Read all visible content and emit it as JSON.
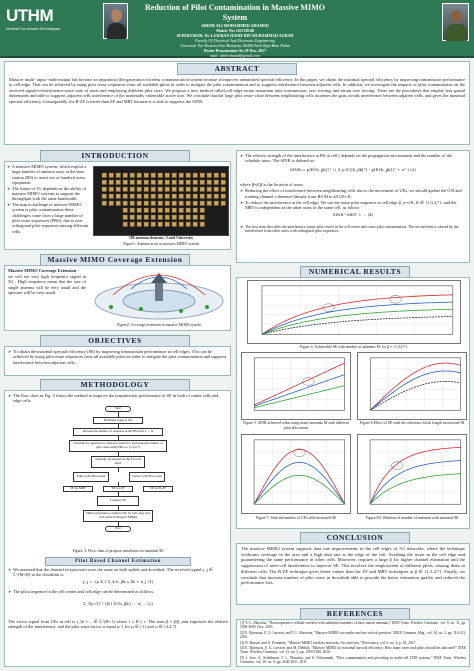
{
  "header": {
    "logo_text": "UTHM",
    "logo_subtext": "Universiti Tun Hussein Onn Malaysia",
    "title": "Reduction of Pilot Contamination in Massive MIMO System",
    "author": "ABEER ALI MOHAMMED AHAMED",
    "matric": "Matric No: GE150140",
    "supervisor": "SUPERVISOR: Dr. LUKMAN HANIF BIN MUHAMMAD AUDAH",
    "faculty": "Faculty Of Electrical And Electronic Engineering",
    "university": "Universiti Tun Hussein Onn Malaysia, 86400 Parit Raja Batu Pahat",
    "presentation": "Poster Presentation On 20 Nov. 2017",
    "email": "mail: abeerahmed@gmail.com"
  },
  "abstract": {
    "heading": "ABSTRACT",
    "text": "Massive multi- input -multi-output has become an important fifth-generation wireless communication system because it improves transmitted spectral efficiency. In this paper, we obtain the maximal spectral efficiency by improving transmission performance in cell-edge. That can be achieved by using pilot reuse sequences from all available pilots in order to mitigate the pilot contamination and to suppress interference between adjacent cells. In addition, we investigate the impacts of pilot contamination on the received signal-to-interference-noise ratio of users and employing different pilot sizes. We propose a new method called cell-edge-aware maximum ratio transmission, zero forcing, and return zero forcing. These are the procedures that employ less spatial dimensions and able to suppress adjacent cells interference of the maximally vulnerable active user. We conclude that the large pilot reuse value between neighbouring cells increases the gain, avoids interference between adjacent cells, and gives the maximal spectral efficiency. Consequently, the R-ZF is better than ZF and MRT because it is able to suppress the SINR."
  },
  "introduction": {
    "heading": "INTRODUCTION",
    "bullets": [
      "A massive MIMO system, which exploit a huge number of antenna array at the base station (BS) to assist ten or hundred users equipment.",
      "The future of 5G depends on the ability of massive MIMO systems to support the throughput with the same bandwidth.",
      "The major challenge in massive MIMO system is pilot contamination these challenges come from a large number of pilot reuse sequences (PRS), due to non-orthogonal pilot sequences among different cells."
    ],
    "figure_caption": "Figure1: Antenna array in massive MIMO system",
    "figure_label_top": "180 antenna elements | Lund University",
    "figure_dim_w": "1.22 cm",
    "figure_dim_h": "61 cm"
  },
  "coverage": {
    "heading": "Massive MIMO Coverage Extension",
    "sub_heading": "Massive MIMO Coverage Extension",
    "text": "we will see very high frequency   signal in 5G , High frequency mean that  the size of single antenna will   be very small and the aperture will be very small.",
    "figure_caption": "Figure2: Coverage extension in massive MIMO system"
  },
  "objectives": {
    "heading": "OBJECTIVES",
    "bullets": [
      "To obtain the maximal spectral efficiency (SE) by improving transmission performance in cell edges. This can be achieved by using pilot reuse sequences from all available pilots in order to mitigate the pilot contamination and suppress interference between adjacent cells."
    ]
  },
  "methodology": {
    "heading": "METHODOLOGY",
    "intro": "The flow chart in Fig. 3 shows the method to improve the transmission performance of SE in both of center cells and edge cells.",
    "flow": [
      "Start",
      "Parameter input to file",
      "Increase the number of antennas in the BS from  1 →  N",
      "Schedule Ue depends on coherence interval τ  and Generate number of pilot reuse using PRS  ω= [1,3,4,7]",
      "Schedule Ue depend on the β for all users",
      "Edge Cells Pilot reuse",
      "Center Cells Pilot reuse",
      "SE for MRT",
      "SE for ZF",
      "SE for R-ZF",
      "Compare SE",
      "High performance, achieved SE by Cell-edge and cell-centre in Massive MIMO",
      "End"
    ],
    "figure_caption": "Figure. 3. Flow chart of propose simulation for maximal SE.",
    "pilot_heading": "Pilot Based Channel Estimation",
    "pilot_bullets": [
      "We assumed that the channel reciprocities were the same on both uplink and downlink. The received signal y_j ∈ ℂ^(M×B) in the downlink is:",
      "The pilot sequence in the cell center and cell edge can be determined as follows:"
    ],
    "eq1": "y_j = √ρ Σ_l Σ_k h_jlk s_lk + n_j      (1)",
    "eq2": "Σ_{k=1}^{K} E{h_jlk} ... ≤ ... (2)",
    "pilot_text": "The vector signal from UEs in cell is s_lk = ... ∈ ℂ^(B×1) where 1 ≤ B ≤ τ. The term  β = β/β_min expresses the relative strength of the interference, and the pilot reuse factor is equal to 1 for ω ∈ {1} and ω ∈ {3,4,7}."
  },
  "right_top": {
    "bullets": [
      "The relative strength of the interference at BS in cell l depends on the propagation environment and the number of the schedule users. The SINR is defined as:",
      "where β̄=β/β̄ is the location of users.",
      "Reducing the effect of interference between neighbouring cells due to the movement of UEs, we should update the CSI and training channel coherence linearly from BS M to all UEs K.",
      "To reduce the interference at the cell edge, We use the reuse pilot sequence at cell edge β_e=c/K, K ∈ {1,3,4,7}, and the MRT is independent in the other users in the same cell, as follow:"
    ],
    "note1": "The first term describes the interference (same pilot reuse) in the cell center and cause pilot contamination. The second term is caused by the interference from other users with orthogonal pilot sequences.",
    "eq_sinr": "SINR = p|E{h_jjk}|² / ( Σ p E{|h_jlk|²} - p|E{h_jjk}|² + σ² )     (3)",
    "eq_mrt": "SINR^MRT = ... (4)"
  },
  "results": {
    "heading": "NUMERICAL RESULTS",
    "fig4_caption": "Figure 4: Achievable SE with number of antennas M, for β = {1,3,4,7}.",
    "fig5_caption": "Figure 5: SINR achieved when using many antennas M with different pilot allocations",
    "fig6_caption": "Figure 6:Effect of SE with the coherence block length on increase M",
    "fig7_caption": "Figure 7: Selected number of UEs with increased SE",
    "fig8_caption": "Figure 8.0: Relation of number of antennas with maximal SE",
    "legend": [
      "MRT",
      "ZF",
      "R-ZF",
      "Cell-edge",
      "Cell-center"
    ],
    "xlabel": "Number of BS Antennas (M)",
    "ylabel": "Spectral Efficiency (bit/s/Hz/cell)"
  },
  "conclusion": {
    "heading": "CONCLUSION",
    "text": "The massive MIMO system supports data rate improvements in the cell edges of 5G networks, where the technique facilitates coverage in the area and a high data rate at the edge of the cell. Avoiding the noise in the cell edge and guaranteeing the same performance in other cells. Moreover, requires a large β for higher channel estimation and the suppression of inter-cell interference to improve SE. This involves the employment of different pilots, reusing them in different cells. The R-ZF technique gives better values than the ZF and MRT techniques at β ∈ {1,3,4,7}. Finally, we conclude that increase number of pilot reuse in downlink able to provide the better estimation quality and reduced the performance loss."
  },
  "references": {
    "heading": "REFERENCES",
    "items": [
      "[1] Y.-L. Marzetta, \"Noncooperative cellular wireless with unlimited numbers of base station antennas,\" IEEE Trans. Wireless Commun., vol. 9, no. 11, pp. 3590-3600, Nov. 2010.",
      "[2] E. Björnson, E. G. Larsson, and T. L. Marzetta, \"Massive MIMO: ten myths and one critical question,\" IEEE Commun. Mag., vol. 54, no. 2, pp. 114-123, 2016.",
      "[3] N. Hassan, and X. Fernando, \"Massive MIMO wireless networks: An overview,\" Electronics, vol. 6, no. 3, p. 63, 2017.",
      "[4] E. Björnson, E. G. Larsson, and M. Debbah, \"Massive MIMO for maximal spectral efficiency: How many users and pilots should be allocated?\" IEEE Trans. Wireless Commun., vol. 15, no. 2, pp. 1293-1308, 2016.",
      "[5] J. Jose, A. Ashikhmin, T. L. Marzetta, and S. Vishwanath, \"Pilot contamination and precoding in multi-cell TDD systems,\" IEEE Trans. Wireless Commun., vol. 10, no. 8, pp. 2640-2651, 2011."
    ]
  },
  "colors": {
    "teal": "#1d6b6b",
    "green_header": "#2e8b57",
    "section_bg": "#d9e2ea",
    "curve_red": "#d62728",
    "curve_blue": "#1f5fbf",
    "curve_green": "#2ca02c",
    "curve_black": "#222222"
  }
}
